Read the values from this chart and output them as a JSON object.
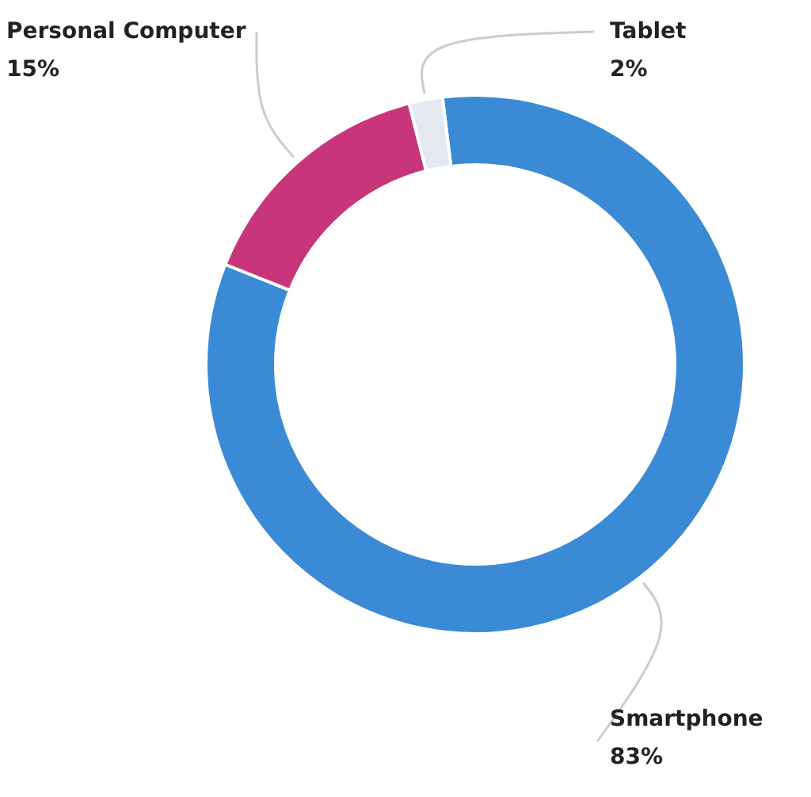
{
  "chart_data": {
    "type": "donut",
    "categories": [
      "Smartphone",
      "Personal Computer",
      "Tablet"
    ],
    "values": [
      83,
      15,
      2
    ],
    "value_labels": [
      "83%",
      "15%",
      "2%"
    ],
    "colors": [
      "#3b8ad6",
      "#c9357a",
      "#e4e9ef"
    ]
  }
}
